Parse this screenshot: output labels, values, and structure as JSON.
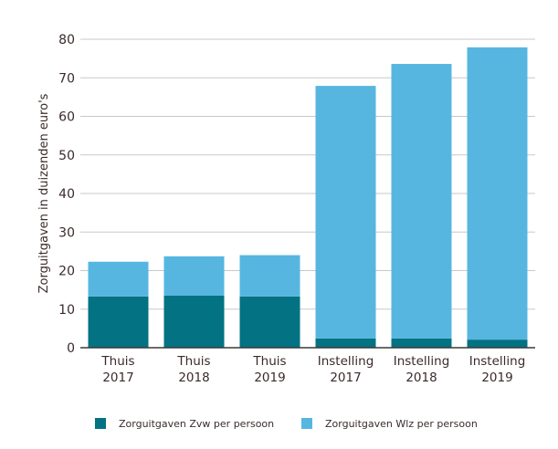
{
  "chart_data": {
    "type": "bar",
    "stacked": true,
    "categories": [
      [
        "Thuis",
        "2017"
      ],
      [
        "Thuis",
        "2018"
      ],
      [
        "Thuis",
        "2019"
      ],
      [
        "Instelling",
        "2017"
      ],
      [
        "Instelling",
        "2018"
      ],
      [
        "Instelling",
        "2019"
      ]
    ],
    "series": [
      {
        "name": "Zorguitgaven Zvw per persoon",
        "color": "#037282",
        "values": [
          13.3,
          13.5,
          13.3,
          2.4,
          2.4,
          2.1
        ]
      },
      {
        "name": "Zorguitgaven Wlz per persoon",
        "color": "#56b6e0",
        "values": [
          9.0,
          10.2,
          10.7,
          65.5,
          71.2,
          75.8
        ]
      }
    ],
    "ylabel": "Zorguitgaven in duizenden euro's",
    "xlabel": "",
    "ylim": [
      0,
      80
    ],
    "yticks": [
      0,
      10,
      20,
      30,
      40,
      50,
      60,
      70,
      80
    ],
    "grid": true,
    "legend": "bottom"
  }
}
